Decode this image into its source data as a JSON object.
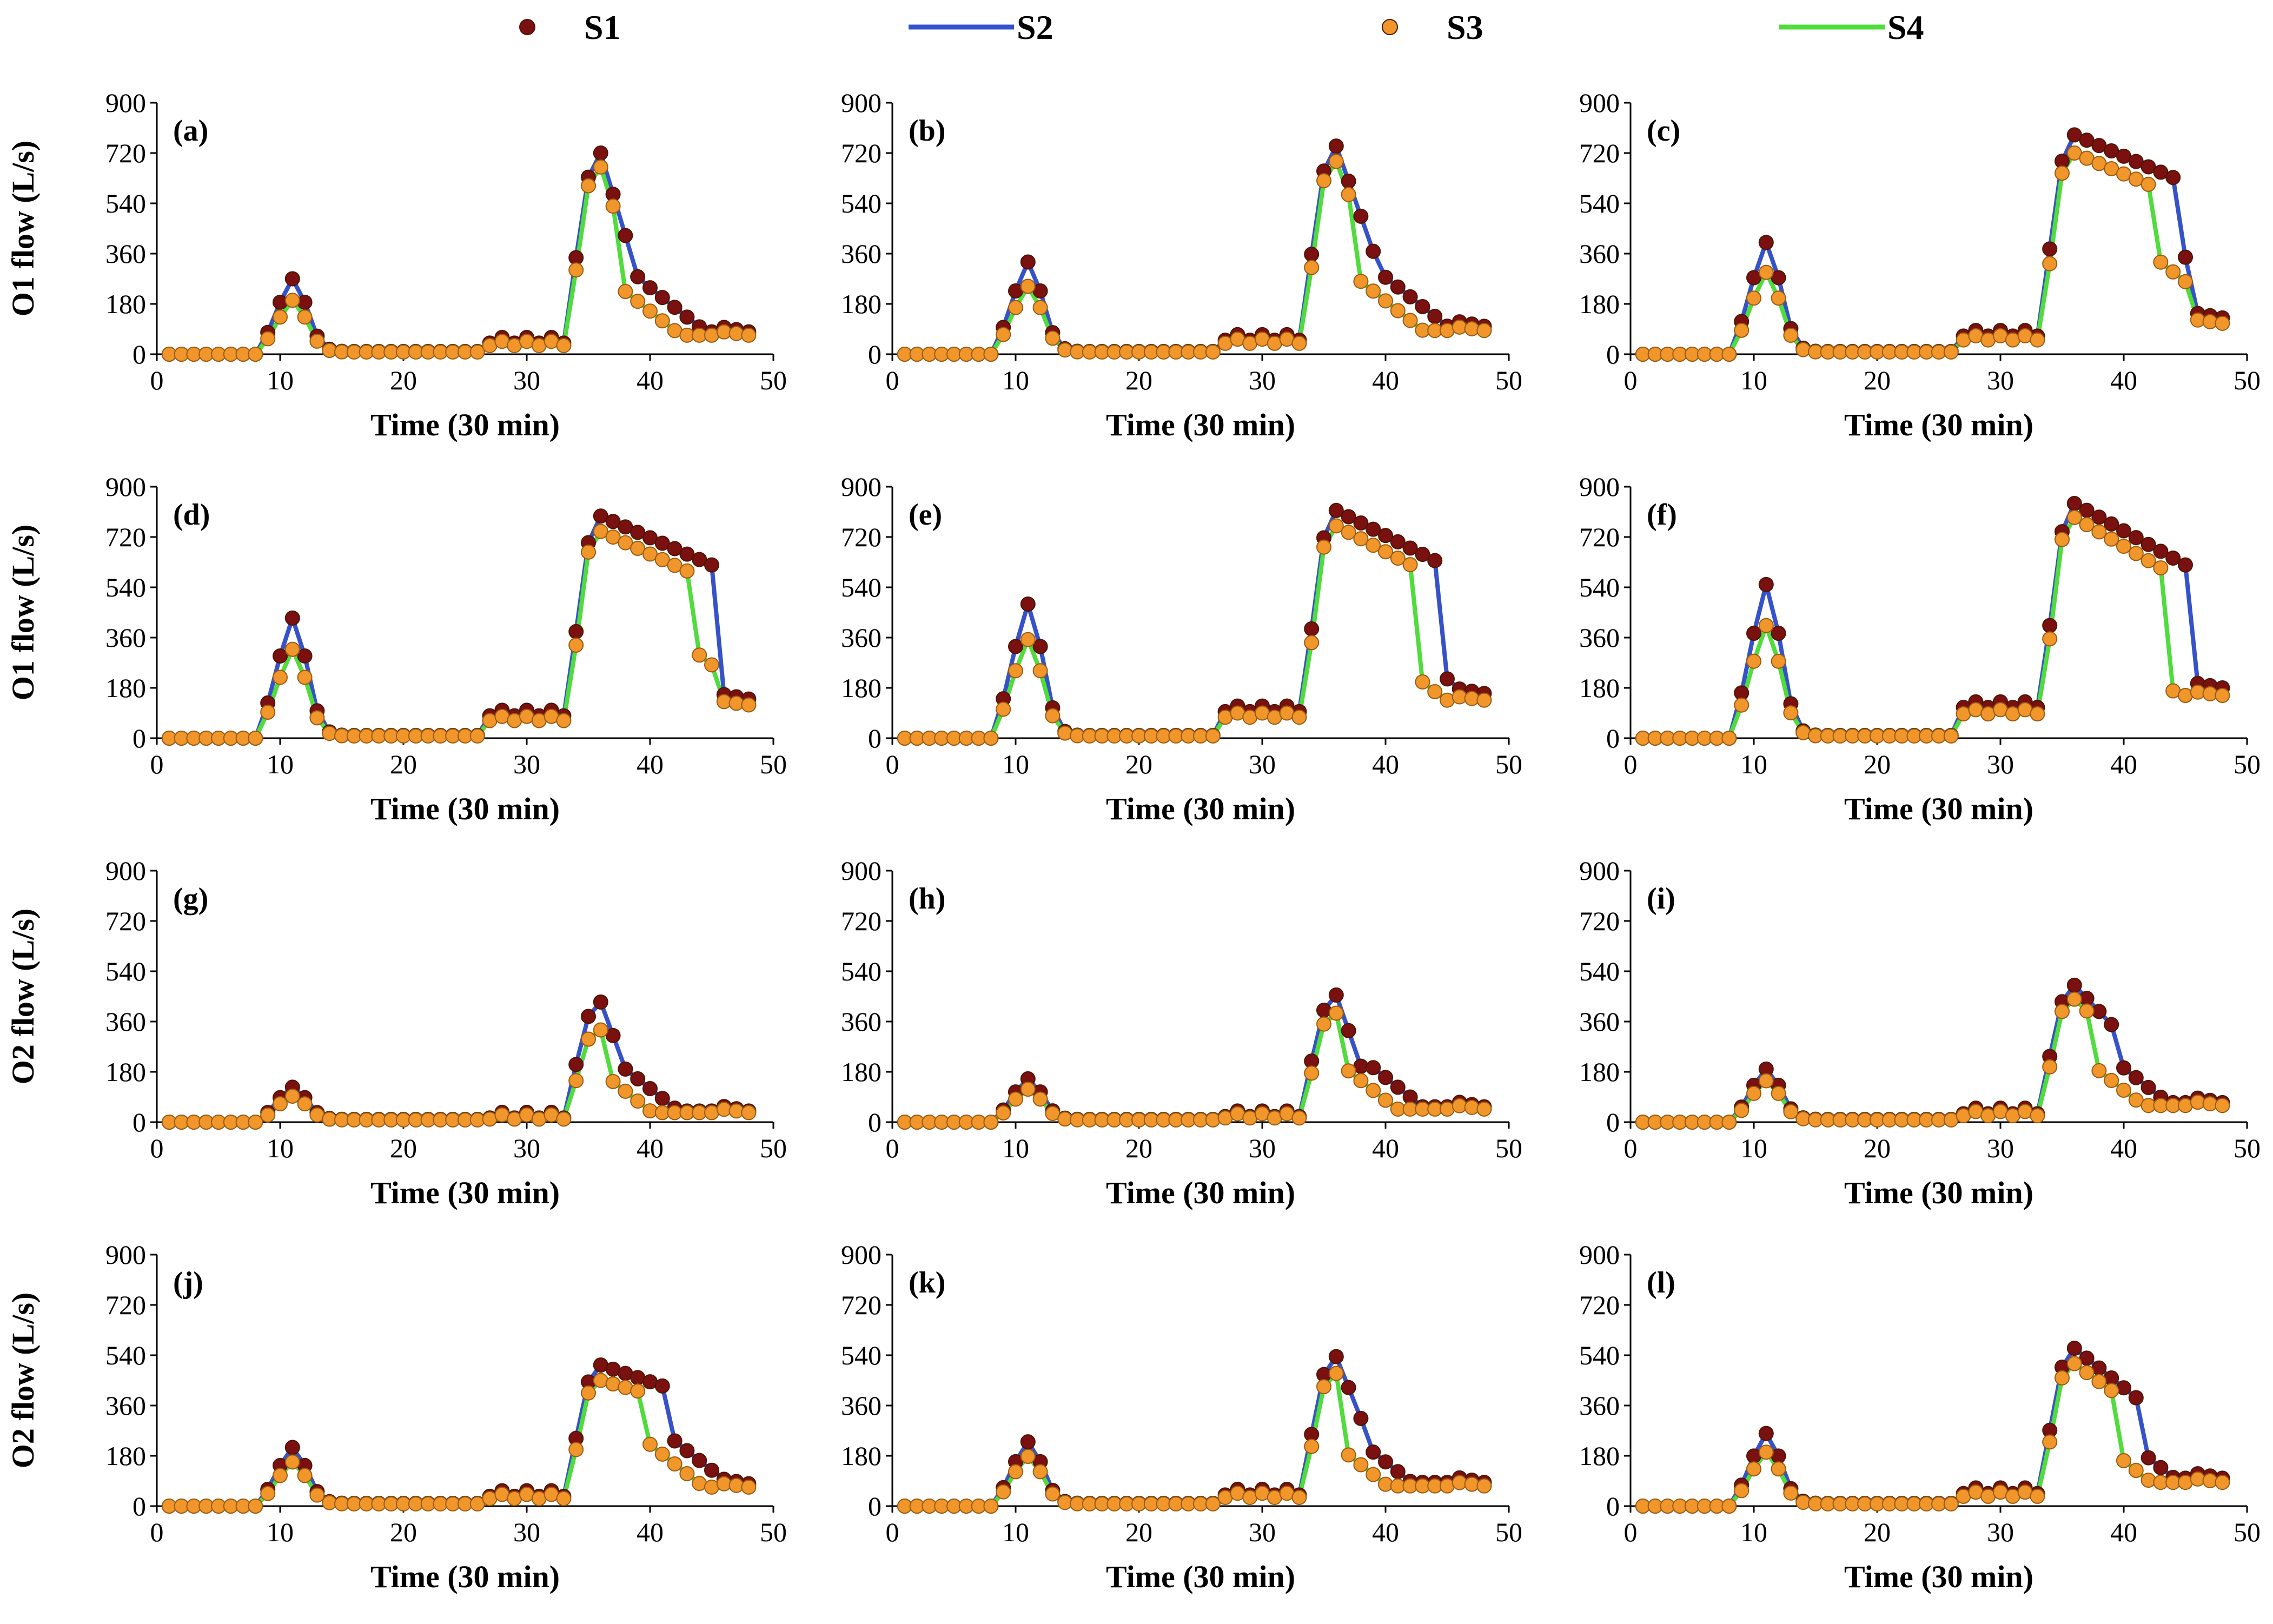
{
  "chart_data": {
    "type": "line",
    "legend": {
      "position": "top",
      "items": [
        {
          "key": "S1",
          "label": "S1",
          "kind": "marker",
          "color": "#7b1010"
        },
        {
          "key": "S2",
          "label": "S2",
          "kind": "line",
          "color": "#3652c8"
        },
        {
          "key": "S3",
          "label": "S3",
          "kind": "marker",
          "color": "#f0962a"
        },
        {
          "key": "S4",
          "label": "S4",
          "kind": "line",
          "color": "#4fdc3c"
        }
      ]
    },
    "xlim": [
      0,
      50
    ],
    "ylim": [
      0,
      900
    ],
    "xticks": [
      "0",
      "10",
      "20",
      "30",
      "40",
      "50"
    ],
    "yticks": [
      "0",
      "180",
      "360",
      "540",
      "720",
      "900"
    ],
    "xlabel": "Time (30 min)",
    "panels": [
      {
        "label": "(a)",
        "ylabel": "O1 flow (L/s)",
        "p1": 260,
        "p2": 720,
        "p1s": 185,
        "p2s": 670,
        "base1": 45,
        "base2": 60,
        "end1": 265,
        "end2": 270,
        "tail": 80
      },
      {
        "label": "(b)",
        "ylabel": "",
        "p1": 320,
        "p2": 745,
        "p1s": 235,
        "p2s": 690,
        "base1": 55,
        "base2": 75,
        "end1": 295,
        "end2": 290,
        "tail": 100
      },
      {
        "label": "(c)",
        "ylabel": "",
        "p1": 390,
        "p2": 785,
        "p1s": 285,
        "p2s": 720,
        "base1": 70,
        "base2": 95,
        "end1": 615,
        "end2": 350,
        "tail": 130
      },
      {
        "label": "(d)",
        "ylabel": "O1 flow (L/s)",
        "p1": 420,
        "p2": 795,
        "p1s": 310,
        "p2s": 740,
        "base1": 85,
        "base2": 110,
        "end1": 620,
        "end2": 350,
        "tail": 140
      },
      {
        "label": "(e)",
        "ylabel": "",
        "p1": 470,
        "p2": 815,
        "p1s": 345,
        "p2s": 760,
        "base1": 100,
        "base2": 125,
        "end1": 615,
        "end2": 215,
        "tail": 160
      },
      {
        "label": "(f)",
        "ylabel": "",
        "p1": 540,
        "p2": 840,
        "p1s": 395,
        "p2s": 790,
        "base1": 115,
        "base2": 140,
        "end1": 620,
        "end2": 215,
        "tail": 180
      },
      {
        "label": "(g)",
        "ylabel": "O2 flow (L/s)",
        "p1": 115,
        "p2": 430,
        "p1s": 85,
        "p2s": 330,
        "base1": 20,
        "base2": 30,
        "end1": 190,
        "end2": 190,
        "tail": 40
      },
      {
        "label": "(h)",
        "ylabel": "",
        "p1": 145,
        "p2": 455,
        "p1s": 110,
        "p2s": 390,
        "base1": 25,
        "base2": 40,
        "end1": 200,
        "end2": 230,
        "tail": 55
      },
      {
        "label": "(i)",
        "ylabel": "",
        "p1": 180,
        "p2": 490,
        "p1s": 140,
        "p2s": 440,
        "base1": 35,
        "base2": 50,
        "end1": 310,
        "end2": 200,
        "tail": 70
      },
      {
        "label": "(j)",
        "ylabel": "O2 flow (L/s)",
        "p1": 200,
        "p2": 505,
        "p1s": 150,
        "p2s": 450,
        "base1": 40,
        "base2": 55,
        "end1": 420,
        "end2": 245,
        "tail": 80
      },
      {
        "label": "(k)",
        "ylabel": "",
        "p1": 220,
        "p2": 535,
        "p1s": 170,
        "p2s": 475,
        "base1": 45,
        "base2": 60,
        "end1": 240,
        "end2": 205,
        "tail": 85
      },
      {
        "label": "(l)",
        "ylabel": "",
        "p1": 250,
        "p2": 565,
        "p1s": 185,
        "p2s": 510,
        "base1": 50,
        "base2": 70,
        "end1": 385,
        "end2": 205,
        "tail": 100
      }
    ]
  }
}
